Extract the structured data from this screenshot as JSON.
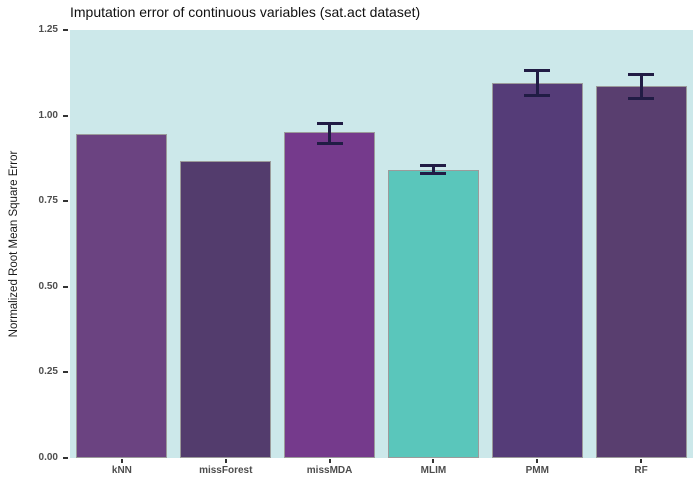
{
  "title": "Imputation error of continuous variables (sat.act dataset)",
  "chart_data": {
    "type": "bar",
    "title": "Imputation error of continuous variables (sat.act dataset)",
    "xlabel": "",
    "ylabel": "Normalized Root Mean Square Error",
    "ylim": [
      0,
      1.25
    ],
    "yticks": [
      0,
      0.25,
      0.5,
      0.75,
      1,
      1.25
    ],
    "ytick_labels": [
      "0.00",
      "0.25",
      "0.50",
      "0.75",
      "1.00",
      "1.25"
    ],
    "grid": false,
    "legend": false,
    "panel_background": "#cce8ea",
    "bar_border_color": "#9b9b9b",
    "errorbar_color": "#211c45",
    "categories": [
      "kNN",
      "missForest",
      "missMDA",
      "MLIM",
      "PMM",
      "RF"
    ],
    "values": [
      0.945,
      0.866,
      0.951,
      0.842,
      1.096,
      1.085
    ],
    "error_low": [
      null,
      null,
      0.918,
      0.828,
      1.058,
      1.049
    ],
    "error_high": [
      null,
      null,
      0.977,
      0.857,
      1.132,
      1.121
    ],
    "bar_colors": [
      "#6b4381",
      "#533c6d",
      "#753a8c",
      "#5ac6bb",
      "#553c78",
      "#593e6f"
    ]
  }
}
